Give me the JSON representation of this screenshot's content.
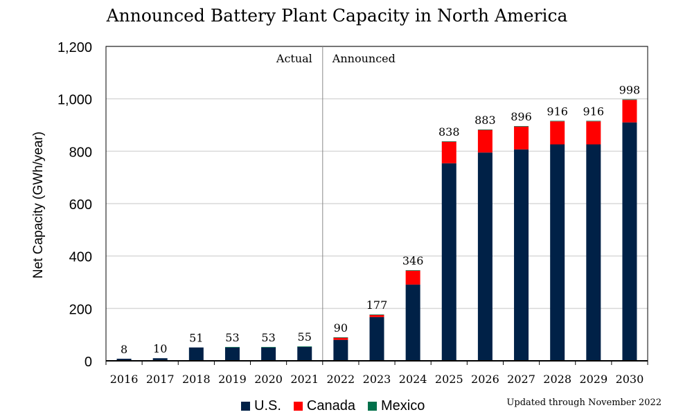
{
  "chart_data": {
    "type": "bar",
    "stacked": true,
    "title": "Announced Battery Plant Capacity in North America",
    "xlabel": "",
    "ylabel": "Net Capacity (GWh/year)",
    "ylim": [
      0,
      1200
    ],
    "yticks": [
      "0",
      "200",
      "400",
      "600",
      "800",
      "1,000",
      "1,200"
    ],
    "ytick_values": [
      0,
      200,
      400,
      600,
      800,
      1000,
      1200
    ],
    "grid": true,
    "categories": [
      "2016",
      "2017",
      "2018",
      "2019",
      "2020",
      "2021",
      "2022",
      "2023",
      "2024",
      "2025",
      "2026",
      "2027",
      "2028",
      "2029",
      "2030"
    ],
    "series": [
      {
        "name": "U.S.",
        "color": "#002147",
        "values": [
          8,
          10,
          51,
          51,
          51,
          53,
          80,
          167,
          291,
          754,
          795,
          807,
          826,
          826,
          910
        ]
      },
      {
        "name": "Canada",
        "color": "#ff0000",
        "values": [
          0,
          0,
          0,
          0,
          0,
          0,
          8,
          8,
          53,
          82,
          86,
          87,
          88,
          88,
          86
        ]
      },
      {
        "name": "Mexico",
        "color": "#00704a",
        "values": [
          0,
          0,
          0,
          2,
          2,
          2,
          2,
          2,
          2,
          2,
          2,
          2,
          2,
          2,
          2
        ]
      }
    ],
    "totals": [
      "8",
      "10",
      "51",
      "53",
      "53",
      "55",
      "90",
      "177",
      "346",
      "838",
      "883",
      "896",
      "916",
      "916",
      "998"
    ],
    "annotations": {
      "actual": "Actual",
      "announced": "Announced",
      "divider_after": "2021"
    },
    "legend_placement": "bottom",
    "note": "Updated through November 2022"
  }
}
